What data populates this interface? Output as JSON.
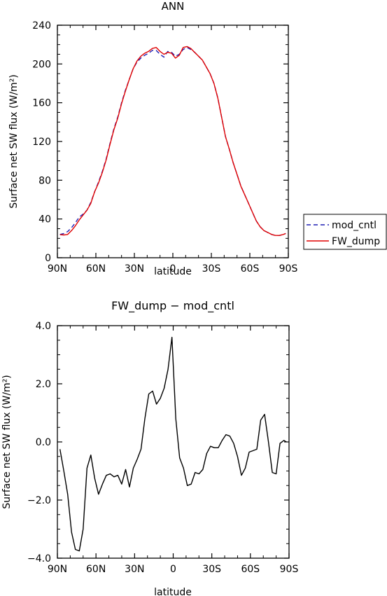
{
  "chart_data": [
    {
      "type": "line",
      "title": "ANN",
      "xlabel": "latitude",
      "ylabel": "Surface net SW flux (W/m²)",
      "xlim": [
        90,
        -90
      ],
      "ylim": [
        0,
        240
      ],
      "x_ticks": [
        90,
        60,
        30,
        0,
        -30,
        -60,
        -90
      ],
      "x_tick_labels": [
        "90N",
        "60N",
        "30N",
        "0",
        "30S",
        "60S",
        "90S"
      ],
      "y_ticks": [
        0,
        40,
        80,
        120,
        160,
        200,
        240
      ],
      "y_tick_labels": [
        "0",
        "40",
        "80",
        "120",
        "160",
        "200",
        "240"
      ],
      "legend_position": "right",
      "colors": {
        "mod_cntl": "#1f1fb4",
        "FW_dump": "#e00000"
      },
      "series": [
        {
          "name": "mod_cntl",
          "style": "dashed",
          "x": [
            88,
            85,
            82,
            79,
            76,
            73,
            70,
            67,
            64,
            61,
            58,
            55,
            52,
            49,
            46,
            43,
            40,
            37,
            34,
            31,
            28,
            25,
            22,
            19,
            16,
            13,
            10,
            7,
            4,
            1,
            -2,
            -5,
            -8,
            -11,
            -14,
            -17,
            -20,
            -23,
            -26,
            -29,
            -32,
            -35,
            -38,
            -41,
            -44,
            -47,
            -50,
            -53,
            -56,
            -59,
            -62,
            -65,
            -68,
            -71,
            -74,
            -77,
            -80,
            -83,
            -86,
            -88
          ],
          "values": [
            24,
            25,
            27,
            31,
            36,
            42,
            45,
            49,
            57,
            68,
            78,
            89,
            102,
            118,
            133,
            145,
            160,
            173,
            184,
            195,
            202,
            206,
            209,
            211,
            214,
            214,
            210,
            207,
            213,
            212,
            208,
            210,
            215,
            217,
            215,
            212,
            208,
            204,
            197,
            190,
            180,
            165,
            145,
            125,
            112,
            98,
            86,
            74,
            65,
            56,
            47,
            38,
            32,
            28,
            26,
            24,
            23,
            23,
            24,
            25
          ]
        },
        {
          "name": "FW_dump",
          "style": "solid",
          "x": [
            88,
            85,
            82,
            79,
            76,
            73,
            70,
            67,
            64,
            61,
            58,
            55,
            52,
            49,
            46,
            43,
            40,
            37,
            34,
            31,
            28,
            25,
            22,
            19,
            16,
            13,
            10,
            7,
            4,
            1,
            -2,
            -5,
            -8,
            -11,
            -14,
            -17,
            -20,
            -23,
            -26,
            -29,
            -32,
            -35,
            -38,
            -41,
            -44,
            -47,
            -50,
            -53,
            -56,
            -59,
            -62,
            -65,
            -68,
            -71,
            -74,
            -77,
            -80,
            -83,
            -86,
            -88
          ],
          "values": [
            23.8,
            23.5,
            24,
            28,
            33,
            39,
            44,
            49,
            56,
            68,
            77,
            88,
            101,
            117,
            132,
            144,
            159,
            172,
            184,
            195,
            203,
            208,
            211,
            213,
            216,
            217,
            213,
            210,
            212,
            211,
            206,
            209,
            217,
            218,
            216,
            212,
            208,
            204,
            197,
            190,
            180,
            165,
            145,
            125,
            112,
            98,
            86,
            73.8,
            65,
            56,
            47,
            38,
            32,
            28,
            26,
            24,
            23,
            23,
            24,
            25
          ]
        }
      ]
    },
    {
      "type": "line",
      "title": "FW_dump − mod_cntl",
      "xlabel": "latitude",
      "ylabel": "Surface net SW flux (W/m²)",
      "xlim": [
        90,
        -90
      ],
      "ylim": [
        -4,
        4
      ],
      "x_ticks": [
        90,
        60,
        30,
        0,
        -30,
        -60,
        -90
      ],
      "x_tick_labels": [
        "90N",
        "60N",
        "30N",
        "0",
        "30S",
        "60S",
        "90S"
      ],
      "y_ticks": [
        -4,
        -2,
        0,
        2,
        4
      ],
      "y_tick_labels": [
        "−4.0",
        "−2.0",
        "0.0",
        "2.0",
        "4.0"
      ],
      "colors": {
        "line": "#000000"
      },
      "series": [
        {
          "style": "solid",
          "x": [
            88,
            85,
            82,
            79,
            76,
            73,
            70,
            67,
            64,
            61,
            58,
            55,
            52,
            49,
            46,
            43,
            40,
            37,
            34,
            31,
            28,
            25,
            22,
            19,
            16,
            13,
            10,
            7,
            4,
            1,
            -2,
            -5,
            -8,
            -11,
            -14,
            -17,
            -20,
            -23,
            -26,
            -29,
            -32,
            -35,
            -38,
            -41,
            -44,
            -47,
            -50,
            -53,
            -56,
            -59,
            -62,
            -65,
            -68,
            -71,
            -74,
            -77,
            -80,
            -83,
            -86,
            -88
          ],
          "values": [
            -0.25,
            -1.0,
            -1.8,
            -3.1,
            -3.7,
            -3.75,
            -3.0,
            -0.9,
            -0.45,
            -1.25,
            -1.8,
            -1.45,
            -1.15,
            -1.1,
            -1.2,
            -1.15,
            -1.45,
            -0.95,
            -1.55,
            -0.9,
            -0.6,
            -0.25,
            0.8,
            1.65,
            1.75,
            1.3,
            1.5,
            1.85,
            2.5,
            3.6,
            0.8,
            -0.55,
            -0.9,
            -1.5,
            -1.45,
            -1.05,
            -1.1,
            -0.95,
            -0.4,
            -0.15,
            -0.2,
            -0.2,
            0.05,
            0.25,
            0.2,
            -0.05,
            -0.5,
            -1.15,
            -0.9,
            -0.35,
            -0.3,
            -0.25,
            0.75,
            0.95,
            0.0,
            -1.05,
            -1.1,
            -0.05,
            0.05,
            0.0
          ]
        }
      ]
    }
  ]
}
